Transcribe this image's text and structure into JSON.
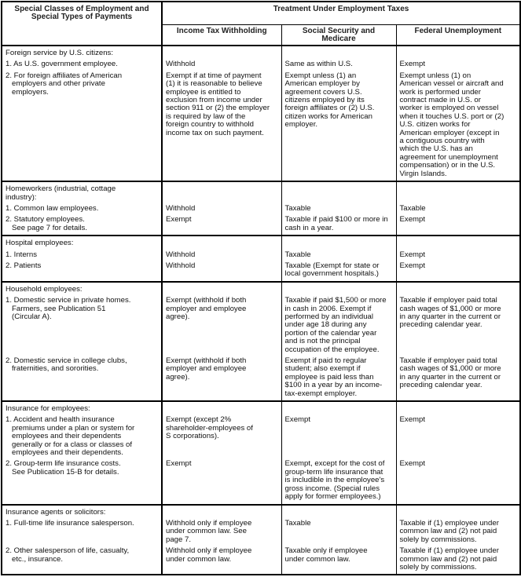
{
  "header": {
    "col1": "Special Classes of Employment and\nSpecial Types of Payments",
    "group": "Treatment Under Employment Taxes",
    "col2": "Income Tax Withholding",
    "col3": "Social Security and\nMedicare",
    "col4": "Federal Unemployment"
  },
  "sections": [
    {
      "title": "Foreign service by U.S. citizens:",
      "items": [
        {
          "label": "1. As U.S. government employee.",
          "income": "Withhold",
          "ss": "Same as within U.S.",
          "futa": "Exempt"
        },
        {
          "label": "2. For foreign affiliates of American\nemployers and other private\nemployers.",
          "income": "Exempt if at time of payment\n(1) it is reasonable to believe\nemployee is entitled to\nexclusion from income under\nsection 911 or (2) the employer\nis required by law of the\nforeign country to withhold\nincome tax on such payment.",
          "ss": "Exempt unless (1) an\nAmerican employer by\nagreement covers U.S.\ncitizens employed by its\nforeign affiliates or (2) U.S.\ncitizen works for American\nemployer.",
          "futa": "Exempt unless (1) on\nAmerican vessel or aircraft and\nwork is performed under\ncontract made in U.S. or\nworker is employed on vessel\nwhen it touches U.S. port or (2)\nU.S. citizen works for\nAmerican employer (except in\na contiguous country with\nwhich the U.S. has an\nagreement for unemployment\ncompensation) or in the U.S.\nVirgin Islands."
        }
      ]
    },
    {
      "title": "Homeworkers (industrial, cottage\nindustry):",
      "items": [
        {
          "label": "1. Common law employees.",
          "income": "Withhold",
          "ss": "Taxable",
          "futa": "Taxable"
        },
        {
          "label": "2. Statutory employees.\nSee page 7 for details.",
          "income": "Exempt",
          "ss": "Taxable if paid $100 or more in\ncash in a year.",
          "futa": "Exempt"
        }
      ]
    },
    {
      "title": "Hospital employees:",
      "items": [
        {
          "label": "1. Interns",
          "income": "Withhold",
          "ss": "Taxable",
          "futa": "Exempt"
        },
        {
          "label": "2. Patients",
          "income": "Withhold",
          "ss": "Taxable (Exempt for state or\nlocal government hospitals.)",
          "futa": "Exempt"
        }
      ]
    },
    {
      "title": "Household employees:",
      "items": [
        {
          "label": "1. Domestic service in private homes.\nFarmers, see Publication 51\n(Circular A).",
          "income": "Exempt (withhold if both\nemployer and employee\nagree).",
          "ss": "Taxable if paid $1,500 or more\nin cash in 2006. Exempt if\nperformed by an individual\nunder age 18 during any\nportion of the calendar year\nand is not the principal\noccupation of the employee.",
          "futa": "Taxable if employer paid total\ncash wages of $1,000 or more\nin any quarter in the current or\npreceding calendar year."
        },
        {
          "label": "2. Domestic service in college clubs,\nfraternities, and sororities.",
          "income": "Exempt (withhold if both\nemployer and employee\nagree).",
          "ss": "Exempt if paid to regular\nstudent; also exempt if\nemployee is paid less than\n$100 in a year by an income-\ntax-exempt employer.",
          "futa": "Taxable if employer paid total\ncash wages of $1,000 or more\nin any quarter in the current or\npreceding calendar year."
        }
      ]
    },
    {
      "title": "Insurance for employees:",
      "items": [
        {
          "label": "1. Accident and health insurance\npremiums under a plan or system for\nemployees and their dependents\ngenerally or for a class or classes of\nemployees and their dependents.",
          "income": "Exempt (except 2%\nshareholder-employees of\nS corporations).",
          "ss": "Exempt",
          "futa": "Exempt"
        },
        {
          "label": "2. Group-term life insurance costs.\nSee Publication 15-B for details.",
          "income": "Exempt",
          "ss": "Exempt, except for the cost of\ngroup-term life insurance that\nis includible in the employee's\ngross income. (Special rules\napply for former employees.)",
          "futa": "Exempt"
        }
      ]
    },
    {
      "title": "Insurance agents or solicitors:",
      "items": [
        {
          "label": "1. Full-time life insurance salesperson.",
          "income": "Withhold only if employee\nunder common law. See\npage 7.",
          "ss": "Taxable",
          "futa": "Taxable if (1) employee under\ncommon law and (2) not paid\nsolely by commissions."
        },
        {
          "label": "2. Other salesperson of life, casualty,\netc., insurance.",
          "income": "Withhold only if employee\nunder common law.",
          "ss": "Taxable only if employee\nunder common law.",
          "futa": "Taxable if (1) employee under\ncommon law and (2) not paid\nsolely by commissions."
        }
      ]
    }
  ]
}
